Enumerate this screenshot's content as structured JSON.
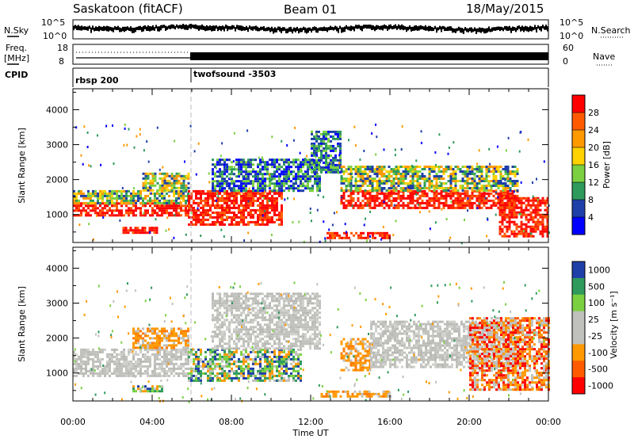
{
  "header": {
    "title": "Saskatoon (fitACF)",
    "beam": "Beam 01",
    "date": "18/May/2015"
  },
  "side_labels": {
    "nsky": "N.Sky",
    "freq_line1": "Freq.",
    "freq_line2": "[MHz]",
    "cpid": "CPID",
    "nsearch": "N.Search",
    "nave": "Nave"
  },
  "strips": {
    "noise": {
      "left_ticks": [
        "10^5",
        "10^0"
      ],
      "right_ticks": [
        "10^5",
        "10^0"
      ]
    },
    "freq": {
      "left_ticks": [
        "18",
        "8"
      ],
      "right_ticks": [
        "60",
        "0"
      ]
    },
    "cpid_segments": [
      {
        "label": "rbsp 200",
        "start_hour": 0
      },
      {
        "label": "twofsound -3503",
        "start_hour": 6
      }
    ]
  },
  "chart_data": [
    {
      "type": "heatmap",
      "name": "power-panel",
      "ylabel": "Slant Range [km]",
      "yticks": [
        1000,
        2000,
        3000,
        4000
      ],
      "ylim": [
        200,
        4600
      ],
      "xlim": [
        0,
        24
      ],
      "colorbar": {
        "label": "Power [dB]",
        "ticks": [
          "28",
          "24",
          "20",
          "16",
          "12",
          "8",
          "4"
        ],
        "colors": [
          "#ff0000",
          "#ff5a00",
          "#ff9900",
          "#ffd200",
          "#7ad040",
          "#2e9a5c",
          "#1f3fa8",
          "#0000ff"
        ]
      },
      "bands": [
        {
          "start_hour": 0.0,
          "end_hour": 5.8,
          "range_km": [
            950,
            1350
          ],
          "level": "high"
        },
        {
          "start_hour": 0.0,
          "end_hour": 5.8,
          "range_km": [
            1350,
            1700
          ],
          "level": "mid"
        },
        {
          "start_hour": 3.5,
          "end_hour": 5.8,
          "range_km": [
            1700,
            2200
          ],
          "level": "mid"
        },
        {
          "start_hour": 5.8,
          "end_hour": 10.5,
          "range_km": [
            700,
            1700
          ],
          "level": "high"
        },
        {
          "start_hour": 7.0,
          "end_hour": 12.5,
          "range_km": [
            1700,
            2600
          ],
          "level": "low"
        },
        {
          "start_hour": 12.0,
          "end_hour": 13.5,
          "range_km": [
            2200,
            3400
          ],
          "level": "low"
        },
        {
          "start_hour": 13.5,
          "end_hour": 22.5,
          "range_km": [
            1200,
            1700
          ],
          "level": "high"
        },
        {
          "start_hour": 13.5,
          "end_hour": 22.5,
          "range_km": [
            1700,
            2400
          ],
          "level": "mid"
        },
        {
          "start_hour": 21.5,
          "end_hour": 24.0,
          "range_km": [
            400,
            1500
          ],
          "level": "high"
        },
        {
          "start_hour": 2.5,
          "end_hour": 4.3,
          "range_km": [
            480,
            650
          ],
          "level": "high"
        },
        {
          "start_hour": 12.8,
          "end_hour": 16.0,
          "range_km": [
            300,
            500
          ],
          "level": "high"
        }
      ]
    },
    {
      "type": "heatmap",
      "name": "velocity-panel",
      "ylabel": "Slant Range [km]",
      "yticks": [
        1000,
        2000,
        3000,
        4000
      ],
      "ylim": [
        200,
        4600
      ],
      "xlim": [
        0,
        24
      ],
      "xticks": [
        "00:00",
        "04:00",
        "08:00",
        "12:00",
        "16:00",
        "20:00",
        "00:00"
      ],
      "xlabel": "Time UT",
      "colorbar": {
        "label": "Velocity [m s⁻¹]",
        "ticks": [
          "1000",
          "500",
          "100",
          "25",
          "-25",
          "-100",
          "-500",
          "-1000"
        ],
        "colors": [
          "#1f3fa8",
          "#2e9a5c",
          "#7ad040",
          "#c0c0bc",
          "#c0c0bc",
          "#ff9900",
          "#ff5a00",
          "#ff0000"
        ]
      },
      "bands": [
        {
          "start_hour": 0.0,
          "end_hour": 5.8,
          "range_km": [
            950,
            1700
          ],
          "level": "ground"
        },
        {
          "start_hour": 3.0,
          "end_hour": 5.8,
          "range_km": [
            1700,
            2300
          ],
          "level": "neg"
        },
        {
          "start_hour": 5.8,
          "end_hour": 11.5,
          "range_km": [
            800,
            1700
          ],
          "level": "pos"
        },
        {
          "start_hour": 7.0,
          "end_hour": 12.5,
          "range_km": [
            1700,
            3300
          ],
          "level": "ground"
        },
        {
          "start_hour": 13.5,
          "end_hour": 15.0,
          "range_km": [
            1100,
            2000
          ],
          "level": "neg"
        },
        {
          "start_hour": 15.0,
          "end_hour": 22.5,
          "range_km": [
            1200,
            2500
          ],
          "level": "ground"
        },
        {
          "start_hour": 20.0,
          "end_hour": 24.0,
          "range_km": [
            500,
            2600
          ],
          "level": "negstrong"
        },
        {
          "start_hour": 12.5,
          "end_hour": 16.0,
          "range_km": [
            300,
            500
          ],
          "level": "neg"
        },
        {
          "start_hour": 3.0,
          "end_hour": 4.5,
          "range_km": [
            480,
            650
          ],
          "level": "pos"
        }
      ]
    }
  ]
}
